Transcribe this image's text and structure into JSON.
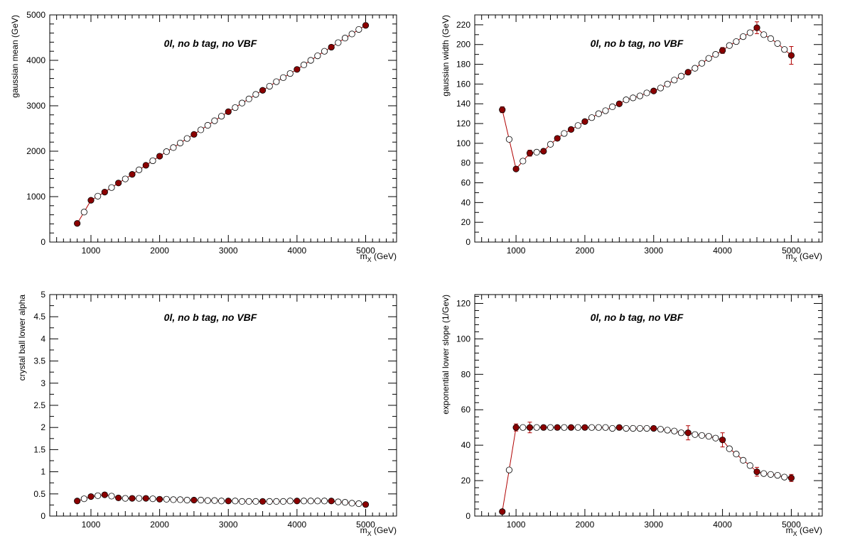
{
  "chart_data": [
    {
      "type": "scatter",
      "annotation": "0l, no b tag, no VBF",
      "xlabel_main": "m",
      "xlabel_sub": "X",
      "xlabel_unit": "(GeV)",
      "ylabel": "gaussian mean (GeV)",
      "xlim": [
        400,
        5450
      ],
      "ylim": [
        0,
        5000
      ],
      "xticks": [
        1000,
        2000,
        3000,
        4000,
        5000
      ],
      "yticks": [
        0,
        1000,
        2000,
        3000,
        4000,
        5000
      ],
      "ytick_labels": [
        "0",
        "1000",
        "2000",
        "3000",
        "4000",
        "5000"
      ],
      "series": [
        {
          "marker": "filled",
          "x": [
            800,
            1000,
            1200,
            1400,
            1600,
            1800,
            2000,
            2500,
            3000,
            3500,
            4000,
            4500,
            5000
          ],
          "y": [
            410,
            920,
            1100,
            1300,
            1490,
            1690,
            1890,
            2370,
            2870,
            3340,
            3800,
            4290,
            4770
          ],
          "err": [
            0,
            0,
            0,
            0,
            0,
            0,
            0,
            0,
            0,
            0,
            0,
            0,
            0
          ]
        },
        {
          "marker": "open",
          "x": [
            900,
            1100,
            1300,
            1500,
            1700,
            1900,
            2100,
            2200,
            2300,
            2400,
            2600,
            2700,
            2800,
            2900,
            3100,
            3200,
            3300,
            3400,
            3600,
            3700,
            3800,
            3900,
            4100,
            4200,
            4300,
            4400,
            4600,
            4700,
            4800,
            4900
          ],
          "y": [
            660,
            1010,
            1200,
            1390,
            1590,
            1790,
            1990,
            2080,
            2180,
            2280,
            2470,
            2570,
            2670,
            2770,
            2960,
            3060,
            3150,
            3250,
            3430,
            3530,
            3620,
            3710,
            3900,
            4000,
            4100,
            4200,
            4390,
            4490,
            4580,
            4680
          ],
          "err": [
            0,
            0,
            0,
            0,
            0,
            0,
            0,
            0,
            0,
            0,
            0,
            0,
            0,
            0,
            0,
            0,
            0,
            0,
            0,
            0,
            0,
            0,
            0,
            0,
            0,
            0,
            0,
            0,
            0,
            0
          ]
        }
      ]
    },
    {
      "type": "scatter",
      "annotation": "0l, no b tag, no VBF",
      "xlabel_main": "m",
      "xlabel_sub": "X",
      "xlabel_unit": "(GeV)",
      "ylabel": "gaussian width (GeV)",
      "xlim": [
        400,
        5450
      ],
      "ylim": [
        0,
        230
      ],
      "xticks": [
        1000,
        2000,
        3000,
        4000,
        5000
      ],
      "yticks": [
        0,
        20,
        40,
        60,
        80,
        100,
        120,
        140,
        160,
        180,
        200,
        220
      ],
      "ytick_labels": [
        "0",
        "20",
        "40",
        "60",
        "80",
        "100",
        "120",
        "140",
        "160",
        "180",
        "200",
        "220"
      ],
      "series": [
        {
          "marker": "filled",
          "x": [
            800,
            1000,
            1200,
            1400,
            1600,
            1800,
            2000,
            2500,
            3000,
            3500,
            4000,
            4500,
            5000
          ],
          "y": [
            134,
            74,
            90,
            92,
            105,
            114,
            122,
            140,
            153,
            172,
            194,
            217,
            189
          ],
          "err": [
            3,
            0,
            3,
            2,
            2,
            2,
            2,
            1,
            2,
            2,
            3,
            6,
            9
          ]
        },
        {
          "marker": "open",
          "x": [
            900,
            1100,
            1300,
            1500,
            1700,
            1900,
            2100,
            2200,
            2300,
            2400,
            2600,
            2700,
            2800,
            2900,
            3100,
            3200,
            3300,
            3400,
            3600,
            3700,
            3800,
            3900,
            4100,
            4200,
            4300,
            4400,
            4600,
            4700,
            4800,
            4900
          ],
          "y": [
            104,
            82,
            91,
            99,
            110,
            118,
            126,
            130,
            133,
            137,
            144,
            146,
            148,
            151,
            156,
            160,
            164,
            168,
            176,
            181,
            186,
            190,
            199,
            203,
            208,
            212,
            210,
            206,
            201,
            195
          ],
          "err": [
            0,
            0,
            0,
            0,
            0,
            0,
            0,
            0,
            0,
            0,
            0,
            0,
            0,
            0,
            0,
            0,
            0,
            0,
            0,
            0,
            0,
            0,
            0,
            0,
            0,
            0,
            0,
            0,
            0,
            0
          ]
        }
      ]
    },
    {
      "type": "scatter",
      "annotation": "0l, no b tag, no VBF",
      "xlabel_main": "m",
      "xlabel_sub": "X",
      "xlabel_unit": "(GeV)",
      "ylabel": "crystal ball lower alpha",
      "xlim": [
        400,
        5450
      ],
      "ylim": [
        0,
        5
      ],
      "xticks": [
        1000,
        2000,
        3000,
        4000,
        5000
      ],
      "yticks": [
        0,
        0.5,
        1,
        1.5,
        2,
        2.5,
        3,
        3.5,
        4,
        4.5,
        5
      ],
      "ytick_labels": [
        "0",
        "0.5",
        "1",
        "1.5",
        "2",
        "2.5",
        "3",
        "3.5",
        "4",
        "4.5",
        "5"
      ],
      "series": [
        {
          "marker": "filled",
          "x": [
            800,
            1000,
            1200,
            1400,
            1600,
            1800,
            2000,
            2500,
            3000,
            3500,
            4000,
            4500,
            5000
          ],
          "y": [
            0.34,
            0.44,
            0.48,
            0.41,
            0.4,
            0.4,
            0.38,
            0.36,
            0.34,
            0.33,
            0.34,
            0.34,
            0.26
          ],
          "err": [
            0,
            0,
            0,
            0,
            0,
            0,
            0,
            0,
            0,
            0,
            0,
            0,
            0
          ]
        },
        {
          "marker": "open",
          "x": [
            900,
            1100,
            1300,
            1500,
            1700,
            1900,
            2100,
            2200,
            2300,
            2400,
            2600,
            2700,
            2800,
            2900,
            3100,
            3200,
            3300,
            3400,
            3600,
            3700,
            3800,
            3900,
            4100,
            4200,
            4300,
            4400,
            4600,
            4700,
            4800,
            4900
          ],
          "y": [
            0.39,
            0.46,
            0.45,
            0.4,
            0.4,
            0.39,
            0.38,
            0.37,
            0.37,
            0.36,
            0.36,
            0.35,
            0.35,
            0.34,
            0.34,
            0.33,
            0.33,
            0.33,
            0.33,
            0.33,
            0.33,
            0.34,
            0.34,
            0.34,
            0.34,
            0.34,
            0.32,
            0.31,
            0.29,
            0.28
          ],
          "err": [
            0,
            0,
            0,
            0,
            0,
            0,
            0,
            0,
            0,
            0,
            0,
            0,
            0,
            0,
            0,
            0,
            0,
            0,
            0,
            0,
            0,
            0,
            0,
            0,
            0,
            0,
            0,
            0,
            0,
            0
          ]
        }
      ]
    },
    {
      "type": "scatter",
      "annotation": "0l, no b tag, no VBF",
      "xlabel_main": "m",
      "xlabel_sub": "X",
      "xlabel_unit": "(GeV)",
      "ylabel": "exponential lower slope (1/Gev)",
      "xlim": [
        400,
        5450
      ],
      "ylim": [
        0,
        125
      ],
      "xticks": [
        1000,
        2000,
        3000,
        4000,
        5000
      ],
      "yticks": [
        0,
        20,
        40,
        60,
        80,
        100,
        120
      ],
      "ytick_labels": [
        "0",
        "20",
        "40",
        "60",
        "80",
        "100",
        "120"
      ],
      "series": [
        {
          "marker": "filled",
          "x": [
            800,
            1000,
            1200,
            1400,
            1600,
            1800,
            2000,
            2500,
            3000,
            3500,
            4000,
            4500,
            5000
          ],
          "y": [
            2.5,
            50,
            50,
            50,
            50,
            50,
            50,
            50,
            49.5,
            47,
            43,
            25,
            21.5
          ],
          "err": [
            0,
            2,
            3,
            1,
            1,
            1,
            1,
            1,
            1,
            4,
            4,
            2.5,
            2
          ]
        },
        {
          "marker": "open",
          "x": [
            900,
            1100,
            1300,
            1500,
            1700,
            1900,
            2100,
            2200,
            2300,
            2400,
            2600,
            2700,
            2800,
            2900,
            3100,
            3200,
            3300,
            3400,
            3600,
            3700,
            3800,
            3900,
            4100,
            4200,
            4300,
            4400,
            4600,
            4700,
            4800,
            4900
          ],
          "y": [
            26,
            50,
            50,
            50,
            50,
            50,
            50,
            50,
            50,
            49.5,
            49.5,
            49.5,
            49.5,
            49.5,
            49,
            48.5,
            48,
            47,
            46,
            45.5,
            45,
            44,
            38,
            35,
            31.5,
            28.5,
            24,
            23.5,
            23,
            22
          ],
          "err": [
            0,
            0,
            0,
            0,
            0,
            0,
            0,
            0,
            0,
            0,
            0,
            0,
            0,
            0,
            0,
            0,
            0,
            0,
            0,
            0,
            0,
            0,
            0,
            0,
            0,
            0,
            0,
            0,
            0,
            0
          ]
        }
      ]
    }
  ],
  "colors": {
    "marker_fill": "#8b0000",
    "line": "#b00000",
    "open_fill": "#ffffff",
    "frame": "#000000"
  }
}
